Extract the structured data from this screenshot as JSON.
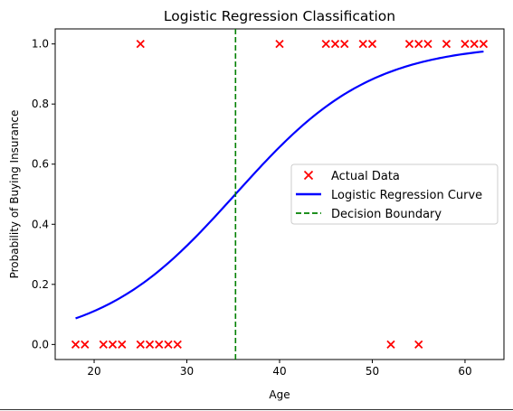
{
  "chart_data": {
    "type": "scatter",
    "title": "Logistic Regression Classification",
    "xlabel": "Age",
    "ylabel": "Probability of Buying Insurance",
    "xlim": [
      15.8,
      64.2
    ],
    "ylim": [
      -0.05,
      1.05
    ],
    "xticks": [
      20,
      30,
      40,
      50,
      60
    ],
    "yticks": [
      0.0,
      0.2,
      0.4,
      0.6,
      0.8,
      1.0
    ],
    "ytick_labels": [
      "0.0",
      "0.2",
      "0.4",
      "0.6",
      "0.8",
      "1.0"
    ],
    "grid": false,
    "legend_position": "center-right",
    "series": [
      {
        "name": "Actual Data",
        "kind": "scatter",
        "marker": "x",
        "color": "#ff0000",
        "points": [
          [
            18,
            0
          ],
          [
            19,
            0
          ],
          [
            21,
            0
          ],
          [
            22,
            0
          ],
          [
            23,
            0
          ],
          [
            25,
            0
          ],
          [
            26,
            0
          ],
          [
            27,
            0
          ],
          [
            28,
            0
          ],
          [
            29,
            0
          ],
          [
            52,
            0
          ],
          [
            55,
            0
          ],
          [
            25,
            1
          ],
          [
            40,
            1
          ],
          [
            45,
            1
          ],
          [
            46,
            1
          ],
          [
            47,
            1
          ],
          [
            49,
            1
          ],
          [
            50,
            1
          ],
          [
            54,
            1
          ],
          [
            55,
            1
          ],
          [
            56,
            1
          ],
          [
            58,
            1
          ],
          [
            60,
            1
          ],
          [
            61,
            1
          ],
          [
            62,
            1
          ]
        ]
      },
      {
        "name": "Logistic Regression Curve",
        "kind": "line",
        "color": "#0000ff",
        "x_range": [
          18,
          62
        ],
        "intercept": -4.81,
        "slope": 0.1365
      },
      {
        "name": "Decision Boundary",
        "kind": "vline",
        "color": "#008000",
        "dash": "dashed",
        "x": 35.25
      }
    ]
  }
}
